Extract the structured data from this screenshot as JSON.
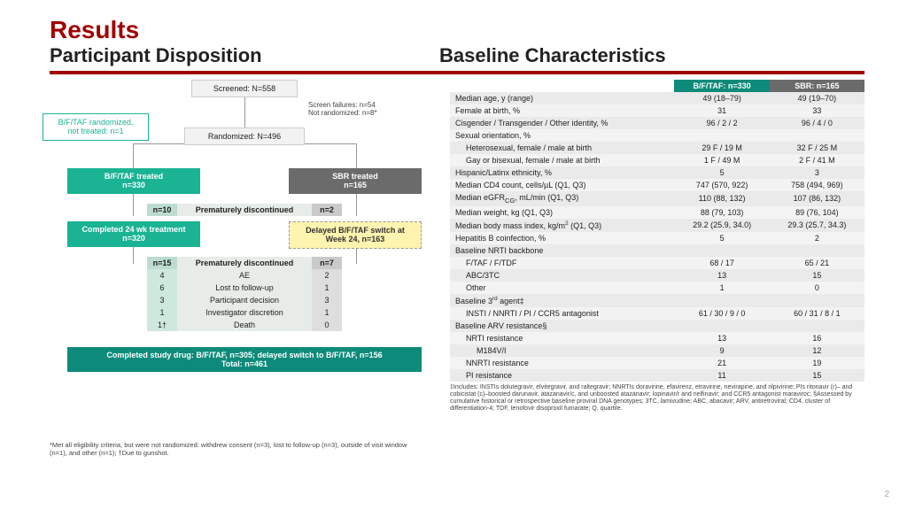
{
  "title": "Results",
  "subtitle_left": "Participant Disposition",
  "subtitle_right": "Baseline Characteristics",
  "flow": {
    "screened": "Screened: N=558",
    "randomized": "Randomized: N=496",
    "sidebox": "B/F/TAF randomized,\nnot treated: n=1",
    "screen_fail": "Screen failures: n=54\nNot randomized: n=8*",
    "bftaf_treated_l1": "B/F/TAF treated",
    "bftaf_treated_l2": "n=330",
    "sbr_treated_l1": "SBR treated",
    "sbr_treated_l2": "n=165",
    "pd1_head": "Prematurely discontinued",
    "pd1_l": "n=10",
    "pd1_r": "n=2",
    "completed24_l1": "Completed 24 wk treatment",
    "completed24_l2": "n=320",
    "delayed_l1": "Delayed B/F/TAF switch at",
    "delayed_l2": "Week 24, n=163",
    "pd2_head": "Prematurely discontinued",
    "pd2_l": "n=15",
    "pd2_r": "n=7",
    "reasons": [
      {
        "l": "4",
        "lab": "AE",
        "r": "2"
      },
      {
        "l": "6",
        "lab": "Lost to follow-up",
        "r": "1"
      },
      {
        "l": "3",
        "lab": "Participant decision",
        "r": "3"
      },
      {
        "l": "1",
        "lab": "Investigator discretion",
        "r": "1"
      },
      {
        "l": "1†",
        "lab": "Death",
        "r": "0"
      }
    ],
    "final": "Completed study drug: B/F/TAF, n=305; delayed switch to B/F/TAF, n=156\nTotal: n=461"
  },
  "table": {
    "h_blank": "",
    "h1": "B/F/TAF: n=330",
    "h2": "SBR: n=165",
    "rows": [
      {
        "label": "Median age, y (range)",
        "a": "49 (18–79)",
        "b": "49 (19–70)"
      },
      {
        "label": "Female at birth, %",
        "a": "31",
        "b": "33"
      },
      {
        "label": "Cisgender / Transgender / Other identity, %",
        "a": "96 / 2 / 2",
        "b": "96 / 4 / 0"
      },
      {
        "label": "Sexual orientation, %",
        "a": "",
        "b": ""
      },
      {
        "label": "Heterosexual, female / male at birth",
        "a": "29 F / 19 M",
        "b": "32 F / 25 M",
        "indent": 1
      },
      {
        "label": "Gay or bisexual, female / male at birth",
        "a": "1 F / 49 M",
        "b": "2 F / 41 M",
        "indent": 1
      },
      {
        "label": "Hispanic/Latinx ethnicity, %",
        "a": "5",
        "b": "3"
      },
      {
        "label": "Median CD4 count, cells/µL (Q1, Q3)",
        "a": "747 (570, 922)",
        "b": "758 (494, 969)"
      },
      {
        "label": "Median eGFR_CG, mL/min (Q1, Q3)",
        "sub": "CG",
        "a": "110 (88, 132)",
        "b": "107 (86, 132)"
      },
      {
        "label": "Median weight, kg (Q1, Q3)",
        "a": "88 (79, 103)",
        "b": "89 (76, 104)"
      },
      {
        "label": "Median body mass index, kg/m^2 (Q1, Q3)",
        "sup": "2",
        "a": "29.2 (25.9, 34.0)",
        "b": "29.3 (25.7, 34.3)"
      },
      {
        "label": "Hepatitis B coinfection, %",
        "a": "5",
        "b": "2"
      },
      {
        "label": "Baseline NRTI backbone",
        "a": "",
        "b": ""
      },
      {
        "label": "F/TAF / F/TDF",
        "a": "68 / 17",
        "b": "65 / 21",
        "indent": 1
      },
      {
        "label": "ABC/3TC",
        "a": "13",
        "b": "15",
        "indent": 1
      },
      {
        "label": "Other",
        "a": "1",
        "b": "0",
        "indent": 1
      },
      {
        "label": "Baseline 3rd agent‡",
        "sup": "rd",
        "a": "",
        "b": ""
      },
      {
        "label": "INSTI / NNRTI / PI / CCR5 antagonist",
        "a": "61 / 30 / 9 / 0",
        "b": "60 / 31 / 8 / 1",
        "indent": 1
      },
      {
        "label": "Baseline ARV resistance§",
        "a": "",
        "b": ""
      },
      {
        "label": "NRTI resistance",
        "a": "13",
        "b": "16",
        "indent": 1
      },
      {
        "label": "M184V/I",
        "a": "9",
        "b": "12",
        "indent": 2
      },
      {
        "label": "NNRTI resistance",
        "a": "21",
        "b": "19",
        "indent": 1
      },
      {
        "label": "PI resistance",
        "a": "11",
        "b": "15",
        "indent": 1
      }
    ]
  },
  "footnote_right": "‡Includes: INSTIs dolutegravir, elvitegravir, and raltegravir; NNRTIs doravirine, efavirenz, etravirine, nevirapine, and rilpivirine; PIs ritonavir (r)– and cobicistat (c)–boosted darunavir, atazanavir/c, and unboosted atazanavir; lopinavir/r and nelfinavir; and CCR5 antagonist maraviroc; §Assessed by cumulative historical or retrospective baseline proviral DNA genotypes; 3TC, lamivudine; ABC, abacavir; ARV, antiretroviral; CD4, cluster of differentiation-4; TDF, tenofovir disoproxil fumarate; Q, quartile.",
  "footnote_left": "*Met all eligibility criteria, but were not randomized: withdrew consent (n=3), lost to follow-up (n=3), outside of visit window (n=1), and other (n=1); †Due to gunshot.",
  "pagenum": "2"
}
